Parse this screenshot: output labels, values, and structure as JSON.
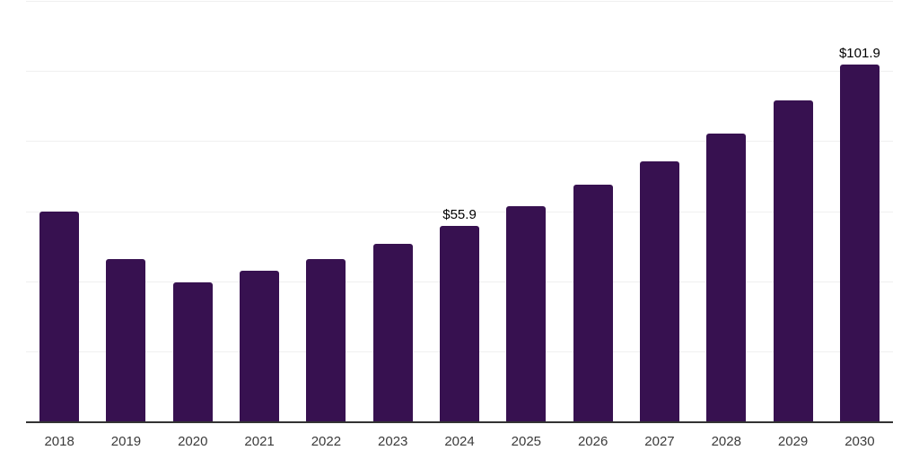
{
  "chart_data": {
    "type": "bar",
    "categories": [
      "2018",
      "2019",
      "2020",
      "2021",
      "2022",
      "2023",
      "2024",
      "2025",
      "2026",
      "2027",
      "2028",
      "2029",
      "2030"
    ],
    "values": [
      60.0,
      46.3,
      39.7,
      43.0,
      46.4,
      50.7,
      55.9,
      61.5,
      67.5,
      74.3,
      82.1,
      91.5,
      101.9
    ],
    "data_labels": [
      "",
      "",
      "",
      "",
      "",
      "",
      "$55.9",
      "",
      "",
      "",
      "",
      "",
      "$101.9"
    ],
    "ylim": [
      0,
      120
    ],
    "gridline_step": 20,
    "grid": "horizontal",
    "legend": "none",
    "colors": {
      "bar": "#371150",
      "gridline": "#f0f0f0",
      "axis_line": "#333333",
      "tick_label": "#3b3b3b",
      "data_label": "#000000",
      "background": "#ffffff"
    }
  }
}
